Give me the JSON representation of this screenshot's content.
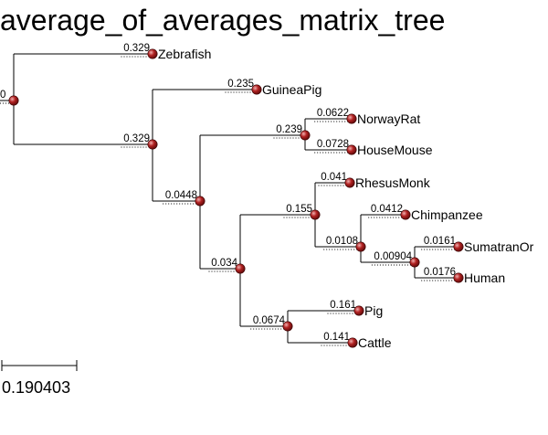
{
  "title": "average_of_averages_matrix_tree",
  "colors": {
    "node_fill": "#b22222",
    "node_highlight": "#f0b0b0",
    "line": "#000000"
  },
  "tree": {
    "id": "root",
    "length": "0",
    "children": [
      {
        "id": "zebrafish",
        "name": "Zebrafish",
        "length": "0.329"
      },
      {
        "id": "n1",
        "length": "0.329",
        "children": [
          {
            "id": "guineapig",
            "name": "GuineaPig",
            "length": "0.235"
          },
          {
            "id": "n2",
            "length": "0.0448",
            "children": [
              {
                "id": "n3",
                "length": "0.239",
                "children": [
                  {
                    "id": "norwayrat",
                    "name": "NorwayRat",
                    "length": "0.0622"
                  },
                  {
                    "id": "housemouse",
                    "name": "HouseMouse",
                    "length": "0.0728"
                  }
                ]
              },
              {
                "id": "n4",
                "length": "0.034",
                "children": [
                  {
                    "id": "n5",
                    "length": "0.155",
                    "children": [
                      {
                        "id": "rhesusmonk",
                        "name": "RhesusMonk",
                        "length": "0.041"
                      },
                      {
                        "id": "n6",
                        "length": "0.0108",
                        "children": [
                          {
                            "id": "chimpanzee",
                            "name": "Chimpanzee",
                            "length": "0.0412"
                          },
                          {
                            "id": "n7",
                            "length": "0.00904",
                            "children": [
                              {
                                "id": "sumatranor",
                                "name": "SumatranOr",
                                "length": "0.0161"
                              },
                              {
                                "id": "human",
                                "name": "Human",
                                "length": "0.0176"
                              }
                            ]
                          }
                        ]
                      }
                    ]
                  },
                  {
                    "id": "n8",
                    "length": "0.0674",
                    "children": [
                      {
                        "id": "pig",
                        "name": "Pig",
                        "length": "0.161"
                      },
                      {
                        "id": "cattle",
                        "name": "Cattle",
                        "length": "0.141"
                      }
                    ]
                  }
                ]
              }
            ]
          }
        ]
      }
    ]
  },
  "scale_bar": {
    "label": "0.190403"
  }
}
